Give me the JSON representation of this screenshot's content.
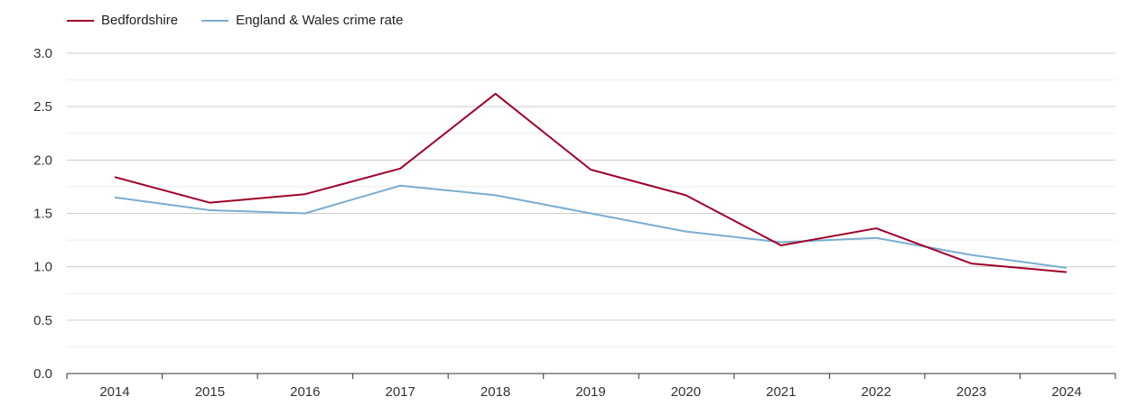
{
  "chart_data": {
    "type": "line",
    "title": "",
    "xlabel": "",
    "ylabel": "",
    "categories": [
      "2014",
      "2015",
      "2016",
      "2017",
      "2018",
      "2019",
      "2020",
      "2021",
      "2022",
      "2023",
      "2024"
    ],
    "ylim": [
      0,
      3.0
    ],
    "yticks": [
      "0.0",
      "0.5",
      "1.0",
      "1.5",
      "2.0",
      "2.5",
      "3.0"
    ],
    "grid": true,
    "legend_position": "top-left",
    "series": [
      {
        "name": "Bedfordshire",
        "color": "#a0002a",
        "values": [
          1.84,
          1.6,
          1.68,
          1.92,
          2.62,
          1.91,
          1.67,
          1.2,
          1.36,
          1.03,
          0.95
        ]
      },
      {
        "name": "England & Wales crime rate",
        "color": "#7aadd1",
        "values": [
          1.65,
          1.53,
          1.5,
          1.76,
          1.67,
          1.5,
          1.33,
          1.23,
          1.27,
          1.11,
          0.99
        ]
      }
    ]
  }
}
